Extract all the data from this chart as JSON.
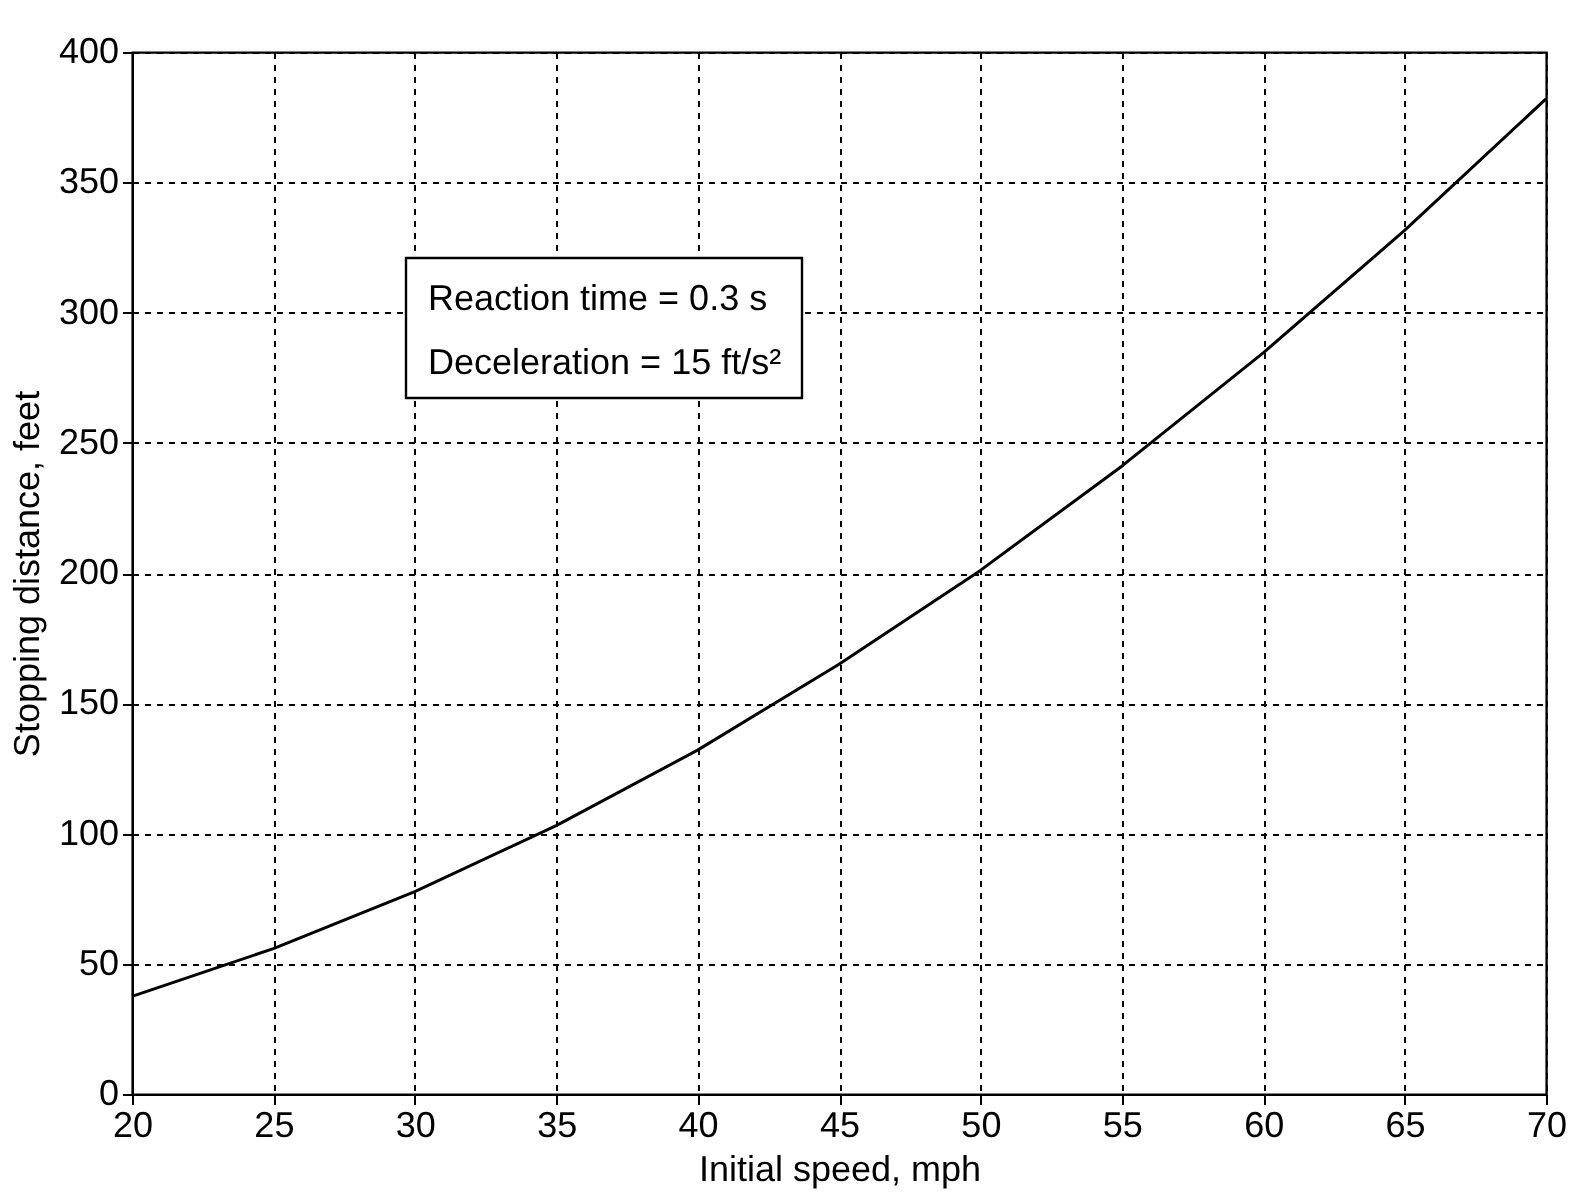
{
  "chart_data": {
    "type": "line",
    "xlabel": "Initial speed, mph",
    "ylabel": "Stopping distance, feet",
    "x": [
      20,
      25,
      30,
      35,
      40,
      45,
      50,
      55,
      60,
      65,
      70
    ],
    "series": [
      {
        "color": "#000000",
        "values": [
          37.5,
          55.8,
          77.7,
          103,
          132,
          165,
          201,
          241,
          284.5,
          331.5,
          382
        ]
      }
    ],
    "xlim": [
      20,
      70
    ],
    "xticks": [
      20,
      25,
      30,
      35,
      40,
      45,
      50,
      55,
      60,
      65,
      70
    ],
    "ylim": [
      0,
      400
    ],
    "yticks": [
      0,
      50,
      100,
      150,
      200,
      250,
      300,
      350,
      400
    ],
    "grid": true,
    "line_style": "solid",
    "annotations": [
      "Reaction time = 0.3 s",
      "Deceleration = 15 ft/s²"
    ]
  }
}
